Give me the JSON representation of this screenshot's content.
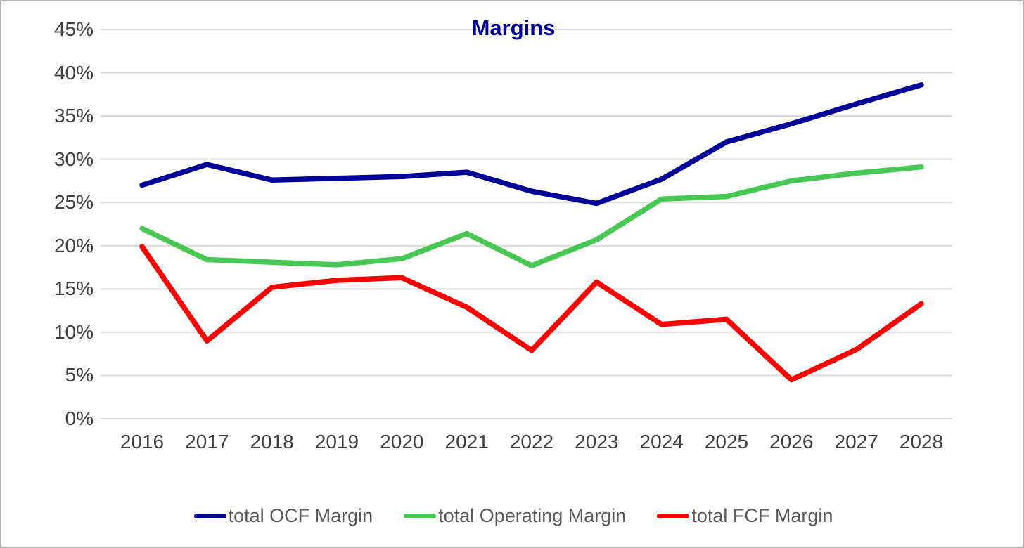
{
  "chart_data": {
    "type": "line",
    "title": "Margins",
    "title_color": "#000099",
    "categories": [
      "2016",
      "2017",
      "2018",
      "2019",
      "2020",
      "2021",
      "2022",
      "2023",
      "2024",
      "2025",
      "2026",
      "2027",
      "2028"
    ],
    "series": [
      {
        "name": "total OCF Margin",
        "color": "#000099",
        "values": [
          27.0,
          29.4,
          27.6,
          27.8,
          28.0,
          28.5,
          26.3,
          24.9,
          27.7,
          32.0,
          34.1,
          36.4,
          38.6
        ]
      },
      {
        "name": "total Operating Margin",
        "color": "#47C754",
        "values": [
          22.0,
          18.4,
          18.1,
          17.8,
          18.5,
          21.4,
          17.7,
          20.7,
          25.4,
          25.7,
          27.5,
          28.4,
          29.1
        ]
      },
      {
        "name": "total FCF Margin",
        "color": "#FF0000",
        "values": [
          19.9,
          9.0,
          15.2,
          16.0,
          16.3,
          12.9,
          7.9,
          15.8,
          10.9,
          11.5,
          4.5,
          8.0,
          13.3
        ]
      }
    ],
    "ylabel": "",
    "xlabel": "",
    "ylim": [
      0,
      45
    ],
    "ytick_step": 5,
    "ytick_labels": [
      "0%",
      "5%",
      "10%",
      "15%",
      "20%",
      "25%",
      "30%",
      "35%",
      "40%",
      "45%"
    ],
    "grid": true,
    "legend_position": "bottom",
    "grid_color": "#D9D9D9",
    "tick_label_color": "#3F3F3F",
    "legend_text_color": "#595959",
    "background_color": "#FFFFFF",
    "border_color": "#B3B3B3"
  }
}
